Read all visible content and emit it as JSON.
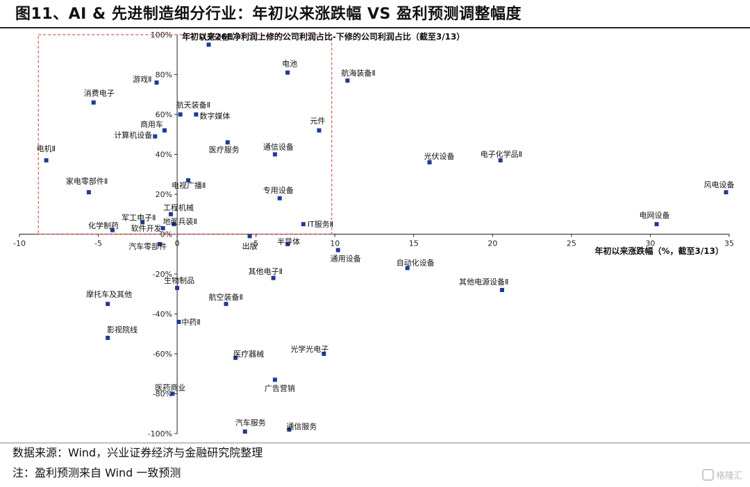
{
  "figure": {
    "title": "图11、AI & 先进制造细分行业：年初以来涨跌幅 VS 盈利预测调整幅度",
    "source": "数据来源：Wind，兴业证券经济与金融研究院整理",
    "note": "注：盈利预测来自 Wind 一致预测",
    "brand": "格隆汇"
  },
  "chart_data": {
    "type": "scatter",
    "title": "",
    "xlabel": "年初以来涨跌幅（%，截至3/13）",
    "ylabel": "年初以来26E净利润上修的公司利润占比-下修的公司利润占比（截至3/13）",
    "xlim": [
      -10,
      35
    ],
    "ylim": [
      -100,
      100
    ],
    "x_ticks": [
      -10,
      -5,
      0,
      5,
      10,
      15,
      20,
      25,
      30,
      35
    ],
    "y_ticks": [
      100,
      80,
      60,
      40,
      20,
      0,
      -20,
      -40,
      -60,
      -80,
      -100
    ],
    "y_tick_labels": [
      "100%",
      "80%",
      "60%",
      "40%",
      "20%",
      "0%",
      "-20%",
      "-40%",
      "-60%",
      "-80%",
      "-100%"
    ],
    "grid": false,
    "marker_color": "#1f3a93",
    "highlight_box": {
      "x": [
        -8.8,
        9.8
      ],
      "y": [
        0,
        100
      ],
      "color": "#e05050"
    },
    "points": [
      {
        "label": "轨交设备Ⅱ",
        "x": 2.0,
        "y": 95
      },
      {
        "label": "电池",
        "x": 7.0,
        "y": 81
      },
      {
        "label": "航海装备Ⅱ",
        "x": 10.8,
        "y": 77
      },
      {
        "label": "游戏Ⅱ",
        "x": -1.3,
        "y": 76
      },
      {
        "label": "消费电子",
        "x": -5.3,
        "y": 66
      },
      {
        "label": "航天装备Ⅱ",
        "x": 0.2,
        "y": 60
      },
      {
        "label": "数字媒体",
        "x": 1.2,
        "y": 60
      },
      {
        "label": "商用车",
        "x": -0.8,
        "y": 52
      },
      {
        "label": "元件",
        "x": 9.0,
        "y": 52
      },
      {
        "label": "计算机设备",
        "x": -1.4,
        "y": 49
      },
      {
        "label": "医疗服务",
        "x": 3.2,
        "y": 46
      },
      {
        "label": "通信设备",
        "x": 6.2,
        "y": 40
      },
      {
        "label": "光伏设备",
        "x": 16.0,
        "y": 36
      },
      {
        "label": "电子化学品Ⅱ",
        "x": 20.5,
        "y": 37
      },
      {
        "label": "电机Ⅱ",
        "x": -8.3,
        "y": 37
      },
      {
        "label": "电视广播Ⅱ",
        "x": 0.7,
        "y": 27
      },
      {
        "label": "家电零部件Ⅱ",
        "x": -5.6,
        "y": 21
      },
      {
        "label": "专用设备",
        "x": 6.5,
        "y": 18
      },
      {
        "label": "风电设备",
        "x": 34.8,
        "y": 21
      },
      {
        "label": "工程机械",
        "x": -0.4,
        "y": 10
      },
      {
        "label": "军工电子Ⅱ",
        "x": -2.2,
        "y": 6
      },
      {
        "label": "地面兵装Ⅱ",
        "x": -0.2,
        "y": 5
      },
      {
        "label": "化学制药",
        "x": -4.1,
        "y": 2
      },
      {
        "label": "软件开发",
        "x": -0.9,
        "y": 3
      },
      {
        "label": "IT服务Ⅱ",
        "x": 8.0,
        "y": 5
      },
      {
        "label": "电网设备",
        "x": 30.4,
        "y": 5
      },
      {
        "label": "出版",
        "x": 4.6,
        "y": -1
      },
      {
        "label": "汽车零部件",
        "x": -1.1,
        "y": -5
      },
      {
        "label": "半导体",
        "x": 7.0,
        "y": -5
      },
      {
        "label": "通用设备",
        "x": 10.2,
        "y": -8
      },
      {
        "label": "自动化设备",
        "x": 14.6,
        "y": -17
      },
      {
        "label": "其他电子Ⅱ",
        "x": 6.1,
        "y": -22
      },
      {
        "label": "其他电源设备Ⅱ",
        "x": 20.6,
        "y": -28
      },
      {
        "label": "生物制品",
        "x": 0.0,
        "y": -27
      },
      {
        "label": "摩托车及其他",
        "x": -4.4,
        "y": -35
      },
      {
        "label": "航空装备Ⅱ",
        "x": 3.1,
        "y": -35
      },
      {
        "label": "中药Ⅱ",
        "x": 0.1,
        "y": -44
      },
      {
        "label": "影视院线",
        "x": -4.4,
        "y": -52
      },
      {
        "label": "光学光电子",
        "x": 9.3,
        "y": -60
      },
      {
        "label": "医疗器械",
        "x": 3.7,
        "y": -62
      },
      {
        "label": "广告营销",
        "x": 6.2,
        "y": -73
      },
      {
        "label": "医药商业",
        "x": -0.3,
        "y": -80
      },
      {
        "label": "汽车服务",
        "x": 4.3,
        "y": -99
      },
      {
        "label": "通信服务",
        "x": 7.1,
        "y": -98
      }
    ]
  }
}
